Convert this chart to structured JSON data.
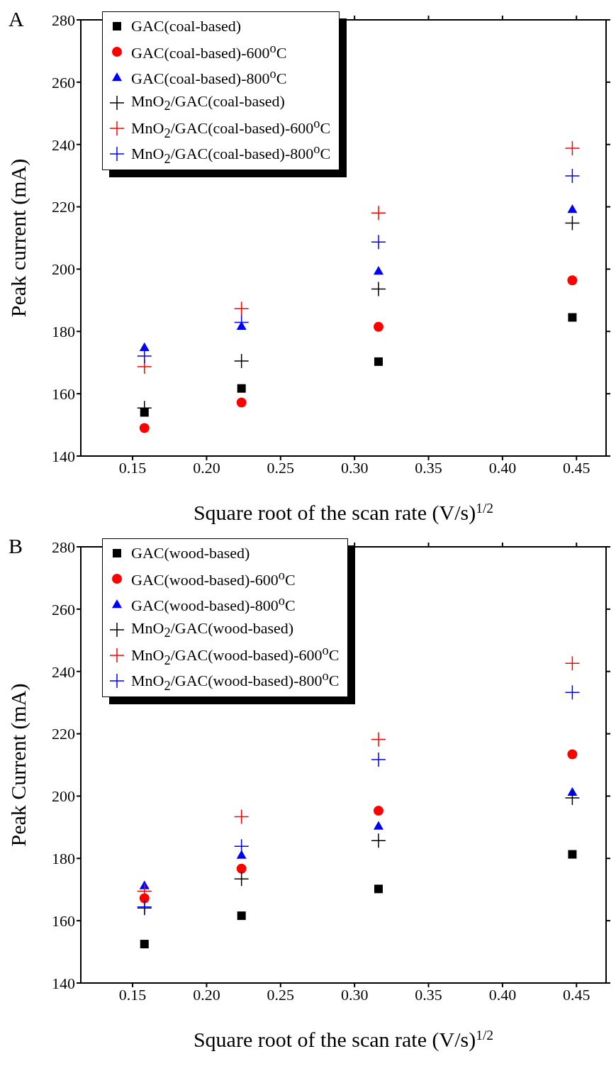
{
  "chart_data": [
    {
      "type": "scatter",
      "annotations": [
        "A"
      ],
      "xlabel": "Square root of the scan rate (V/s)$^{1/2}$",
      "ylabel": "Peak current (mA)",
      "x": [
        0.158,
        0.2236,
        0.3162,
        0.4472
      ],
      "xlim": [
        0.115,
        0.47
      ],
      "xticks": [
        {
          "value": 0.15,
          "label": "0.15"
        },
        {
          "value": 0.2,
          "label": "0.20"
        },
        {
          "value": 0.25,
          "label": "0.25"
        },
        {
          "value": 0.3,
          "label": "0.30"
        },
        {
          "value": 0.35,
          "label": "0.35"
        },
        {
          "value": 0.4,
          "label": "0.40"
        },
        {
          "value": 0.45,
          "label": "0.45"
        }
      ],
      "ylim": [
        140,
        280
      ],
      "yticks": [
        140,
        160,
        180,
        200,
        220,
        240,
        260,
        280
      ],
      "legend": "top left",
      "series": [
        {
          "name": "GAC(coal-based)",
          "color": "#000000",
          "marker": "square",
          "values": [
            154,
            161.7,
            170.3,
            184.5
          ]
        },
        {
          "name": "GAC(coal-based)-600$^{o}$C",
          "color": "#ff0000",
          "marker": "circle",
          "values": [
            149,
            157.2,
            181.5,
            196.4
          ]
        },
        {
          "name": "GAC(coal-based)-800$^{o}$C",
          "color": "#0000ff",
          "marker": "triangle",
          "values": [
            174.9,
            181.7,
            199.4,
            219.2
          ]
        },
        {
          "name": "MnO$_{2}$/GAC(coal-based)",
          "color": "#000000",
          "marker": "cross",
          "values": [
            155.4,
            170.5,
            193.6,
            214.8
          ]
        },
        {
          "name": "MnO$_{2}$/GAC(coal-based)-600$^{o}$C",
          "color": "#ff0000",
          "marker": "cross",
          "values": [
            168.7,
            187.3,
            218,
            238.8
          ]
        },
        {
          "name": "MnO$_{2}$/GAC(coal-based)-800$^{o}$C",
          "color": "#0000ff",
          "marker": "cross",
          "values": [
            172.1,
            182.9,
            208.7,
            229.9
          ]
        }
      ]
    },
    {
      "type": "scatter",
      "annotations": [
        "B"
      ],
      "xlabel": "Square root of the scan rate (V/s)$^{1/2}$",
      "ylabel": "Peak Current (mA)",
      "x": [
        0.158,
        0.2236,
        0.3162,
        0.4472
      ],
      "xlim": [
        0.115,
        0.47
      ],
      "xticks": [
        {
          "value": 0.15,
          "label": "0.15"
        },
        {
          "value": 0.2,
          "label": "0.20"
        },
        {
          "value": 0.25,
          "label": "0.25"
        },
        {
          "value": 0.3,
          "label": "0.30"
        },
        {
          "value": 0.35,
          "label": "0.35"
        },
        {
          "value": 0.4,
          "label": "0.40"
        },
        {
          "value": 0.45,
          "label": "0.45"
        }
      ],
      "ylim": [
        140,
        280
      ],
      "yticks": [
        140,
        160,
        180,
        200,
        220,
        240,
        260,
        280
      ],
      "legend": "top left",
      "series": [
        {
          "name": "GAC(wood-based)",
          "color": "#000000",
          "marker": "square",
          "values": [
            152.5,
            161.6,
            170.2,
            181.3
          ]
        },
        {
          "name": "GAC(wood-based)-600$^{o}$C",
          "color": "#ff0000",
          "marker": "circle",
          "values": [
            167.2,
            176.7,
            195.3,
            213.4
          ]
        },
        {
          "name": "GAC(wood-based)-800$^{o}$C",
          "color": "#0000ff",
          "marker": "triangle",
          "values": [
            171.3,
            181.1,
            190.4,
            201.3
          ]
        },
        {
          "name": "MnO$_{2}$/GAC(wood-based)",
          "color": "#000000",
          "marker": "cross",
          "values": [
            164.1,
            173.4,
            185.7,
            199.4
          ]
        },
        {
          "name": "MnO$_{2}$/GAC(wood-based)-600$^{o}$C",
          "color": "#ff0000",
          "marker": "cross",
          "values": [
            169.5,
            193.4,
            218.2,
            242.6
          ]
        },
        {
          "name": "MnO$_{2}$/GAC(wood-based)-800$^{o}$C",
          "color": "#0000ff",
          "marker": "cross",
          "values": [
            164.4,
            183.9,
            211.7,
            233.3
          ]
        }
      ]
    }
  ]
}
